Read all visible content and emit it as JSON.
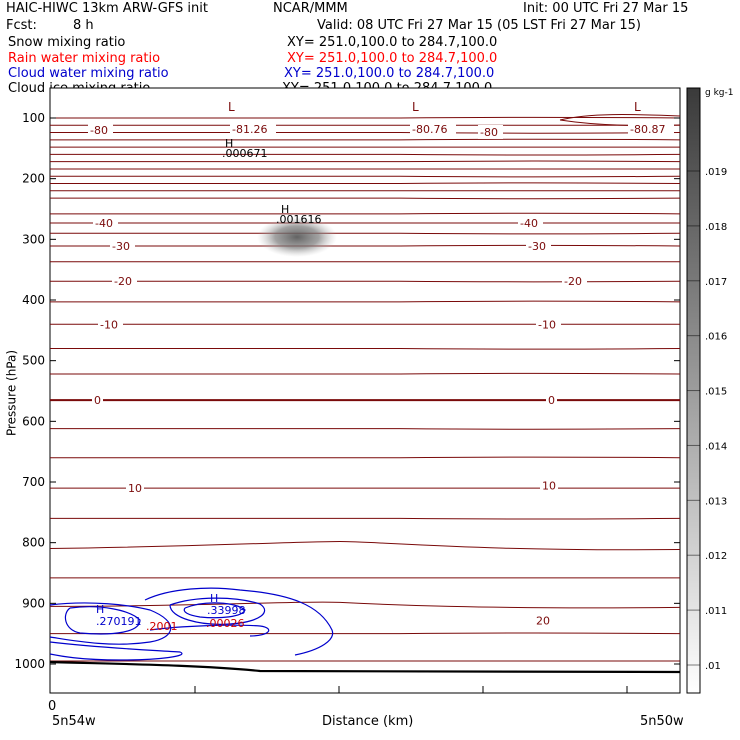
{
  "header": {
    "model": "HAIC-HIWC 13km ARW-GFS init",
    "org": "NCAR/MMM",
    "init": "Init: 00 UTC Fri 27 Mar 15",
    "fcst_label": "Fcst:",
    "fcst_value": "8 h",
    "valid": "Valid: 08 UTC Fri 27 Mar 15 (05 LST Fri 27 Mar 15)"
  },
  "fields": [
    {
      "name": "Snow mixing ratio",
      "xy": "XY= 251.0,100.0 to 284.7,100.0",
      "color": "#000000"
    },
    {
      "name": "Rain water mixing ratio",
      "xy": "XY= 251.0,100.0 to 284.7,100.0",
      "color": "#ff0000"
    },
    {
      "name": "Cloud water mixing ratio",
      "xy": "XY= 251.0,100.0 to 284.7,100.0",
      "color": "#0000cc"
    },
    {
      "name": "Cloud ice mixing ratio",
      "xy": "XY= 251.0,100.0 to 284.7,100.0",
      "color": "#000000"
    }
  ],
  "chart_data": {
    "type": "cross-section contour",
    "xlabel": "Distance (km)",
    "ylabel": "Pressure (hPa)",
    "x_ticks": [
      "0"
    ],
    "x_end_labels": [
      "5n54w",
      "5n50w"
    ],
    "y_ticks": [
      100,
      200,
      300,
      400,
      500,
      600,
      700,
      800,
      900,
      1000
    ],
    "ylim": [
      1050,
      50
    ],
    "colorbar": {
      "unit": "g kg-1",
      "ticks": [
        ".01",
        ".011",
        ".012",
        ".013",
        ".014",
        ".015",
        ".016",
        ".017",
        ".018",
        ".019"
      ]
    },
    "temperature_contours": {
      "color": "#7a0a0a",
      "labels": [
        {
          "text": "-80",
          "p": 120
        },
        {
          "text": "-81.26",
          "p": 118
        },
        {
          "text": "-80.76",
          "p": 118
        },
        {
          "text": "-80",
          "p": 123
        },
        {
          "text": "-80.87",
          "p": 118
        },
        {
          "text": "-40",
          "p": 273
        },
        {
          "text": "-40",
          "p": 273
        },
        {
          "text": "-30",
          "p": 311
        },
        {
          "text": "-30",
          "p": 311
        },
        {
          "text": "-20",
          "p": 369
        },
        {
          "text": "-20",
          "p": 369
        },
        {
          "text": "-10",
          "p": 440
        },
        {
          "text": "-10",
          "p": 440
        },
        {
          "text": "0",
          "p": 565
        },
        {
          "text": "0",
          "p": 565
        },
        {
          "text": "10",
          "p": 710
        },
        {
          "text": "10",
          "p": 706
        },
        {
          "text": "20",
          "p": 928
        }
      ]
    },
    "extrema": [
      {
        "type": "L",
        "color": "#7a0a0a"
      },
      {
        "type": "L",
        "color": "#7a0a0a"
      },
      {
        "type": "L",
        "color": "#7a0a0a"
      },
      {
        "type": "H",
        "value": ".000671",
        "color": "#000000"
      },
      {
        "type": "H",
        "value": ".001616",
        "color": "#000000"
      },
      {
        "type": "H",
        "value": ".270191",
        "color": "#0000cc"
      },
      {
        "type": "H",
        "value": ".33998",
        "color": "#0000cc"
      },
      {
        "type": "value",
        "value": ".2001",
        "color": "#cc0000"
      },
      {
        "type": "value",
        "value": ".00026",
        "color": "#cc0000"
      }
    ]
  }
}
